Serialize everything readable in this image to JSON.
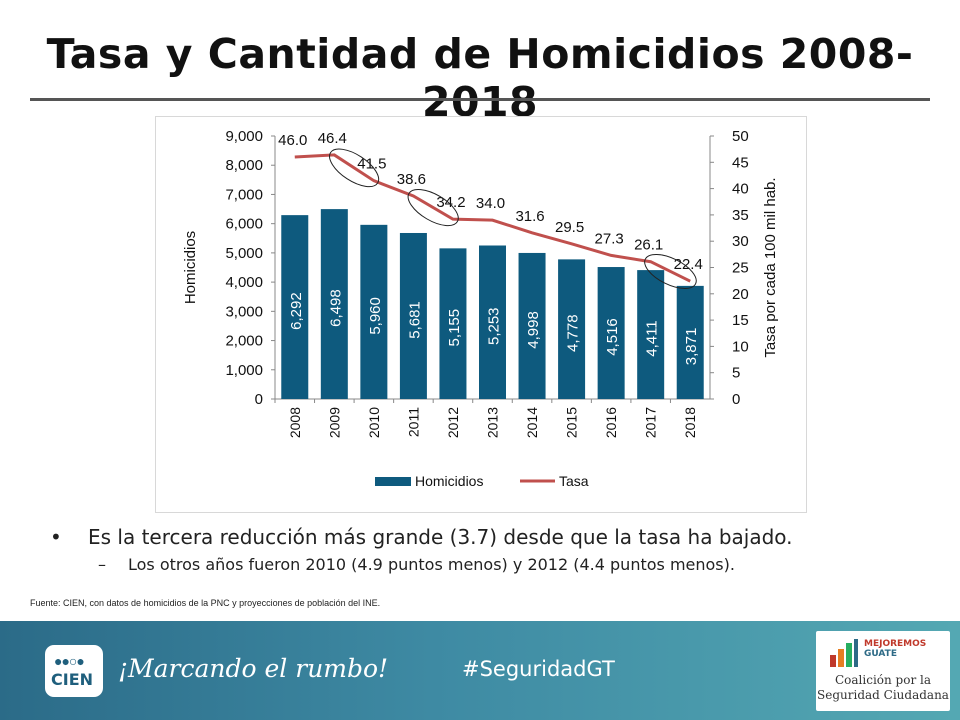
{
  "title": "Tasa y Cantidad de Homicidios 2008-2018",
  "chart_data": {
    "type": "bar",
    "categories": [
      "2008",
      "2009",
      "2010",
      "2011",
      "2012",
      "2013",
      "2014",
      "2015",
      "2016",
      "2017",
      "2018"
    ],
    "series": [
      {
        "name": "Homicidios",
        "type": "bar",
        "axis": "left",
        "values": [
          6292,
          6498,
          5960,
          5681,
          5155,
          5253,
          4998,
          4778,
          4516,
          4411,
          3871
        ],
        "labels": [
          "6,292",
          "6,498",
          "5,960",
          "5,681",
          "5,155",
          "5,253",
          "4,998",
          "4,778",
          "4,516",
          "4,411",
          "3,871"
        ],
        "color": "#0e5a7e"
      },
      {
        "name": "Tasa",
        "type": "line",
        "axis": "right",
        "values": [
          46.0,
          46.4,
          41.5,
          38.6,
          34.2,
          34.0,
          31.6,
          29.5,
          27.3,
          26.1,
          22.4
        ],
        "labels": [
          "46.0",
          "46.4",
          "41.5",
          "38.6",
          "34.2",
          "34.0",
          "31.6",
          "29.5",
          "27.3",
          "26.1",
          "22.4"
        ],
        "color": "#c0504d"
      }
    ],
    "ylabel_left": "Homicidios",
    "ylabel_right": "Tasa por cada 100 mil hab.",
    "ylim_left": [
      0,
      9000
    ],
    "ylim_right": [
      0,
      50
    ],
    "ticks_left": [
      "0",
      "1,000",
      "2,000",
      "3,000",
      "4,000",
      "5,000",
      "6,000",
      "7,000",
      "8,000",
      "9,000"
    ],
    "ticks_right": [
      "0",
      "5",
      "10",
      "15",
      "20",
      "25",
      "30",
      "35",
      "40",
      "45",
      "50"
    ],
    "legend": [
      "Homicidios",
      "Tasa"
    ],
    "legend_position": "bottom",
    "annotations": "circles around 2009-2010, 2011-2012 and 2017-2018 rate drops"
  },
  "bullets": {
    "main": "Es la tercera reducción más grande (3.7) desde que la tasa ha bajado.",
    "sub": "Los otros años fueron 2010 (4.9 puntos menos) y 2012 (4.4 puntos menos)."
  },
  "source": "Fuente: CIEN, con datos de homicidios de la PNC y proyecciones de población del INE.",
  "footer": {
    "logo_text": "CIEN",
    "slogan": "¡Marcando el rumbo!",
    "hashtag": "#SeguridadGT",
    "partner_top_1": "MEJOREMOS",
    "partner_top_2": "GUATE",
    "partner_line1": "Coalición por la",
    "partner_line2": "Seguridad Ciudadana"
  }
}
